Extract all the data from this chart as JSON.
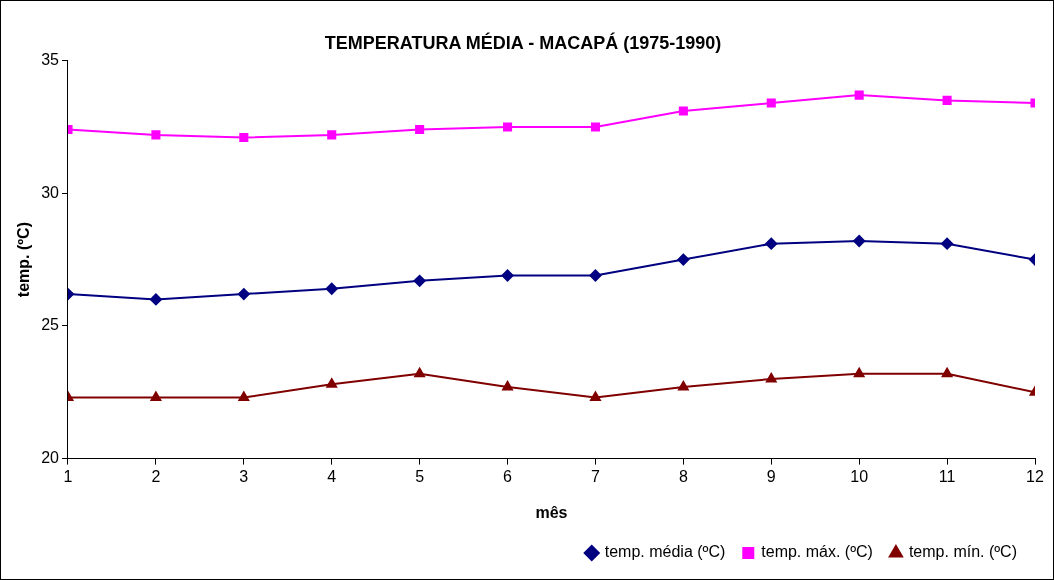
{
  "chart_data": {
    "type": "line",
    "title": "TEMPERATURA MÉDIA - MACAPÁ (1975-1990)",
    "xlabel": "mês",
    "ylabel": "temp. (ºC)",
    "x": [
      1,
      2,
      3,
      4,
      5,
      6,
      7,
      8,
      9,
      10,
      11,
      12
    ],
    "series": [
      {
        "name": "temp. média (ºC)",
        "color": "#000080",
        "marker": "diamond",
        "values": [
          26.2,
          26.0,
          26.2,
          26.4,
          26.7,
          26.9,
          26.9,
          27.5,
          28.1,
          28.2,
          28.1,
          27.5
        ]
      },
      {
        "name": "temp. máx. (ºC)",
        "color": "#ff00ff",
        "marker": "square",
        "values": [
          32.4,
          32.2,
          32.1,
          32.2,
          32.4,
          32.5,
          32.5,
          33.1,
          33.4,
          33.7,
          33.5,
          33.4
        ]
      },
      {
        "name": "temp. mín. (ºC)",
        "color": "#800000",
        "marker": "triangle",
        "values": [
          22.3,
          22.3,
          22.3,
          22.8,
          23.2,
          22.7,
          22.3,
          22.7,
          23.0,
          23.2,
          23.2,
          22.5
        ]
      }
    ],
    "xlim": [
      1,
      12
    ],
    "xticks": [
      1,
      2,
      3,
      4,
      5,
      6,
      7,
      8,
      9,
      10,
      11,
      12
    ],
    "ylim": [
      20,
      35
    ],
    "yticks": [
      20,
      25,
      30,
      35
    ],
    "grid": false,
    "legend": "bottom right",
    "line_style": "solid"
  }
}
